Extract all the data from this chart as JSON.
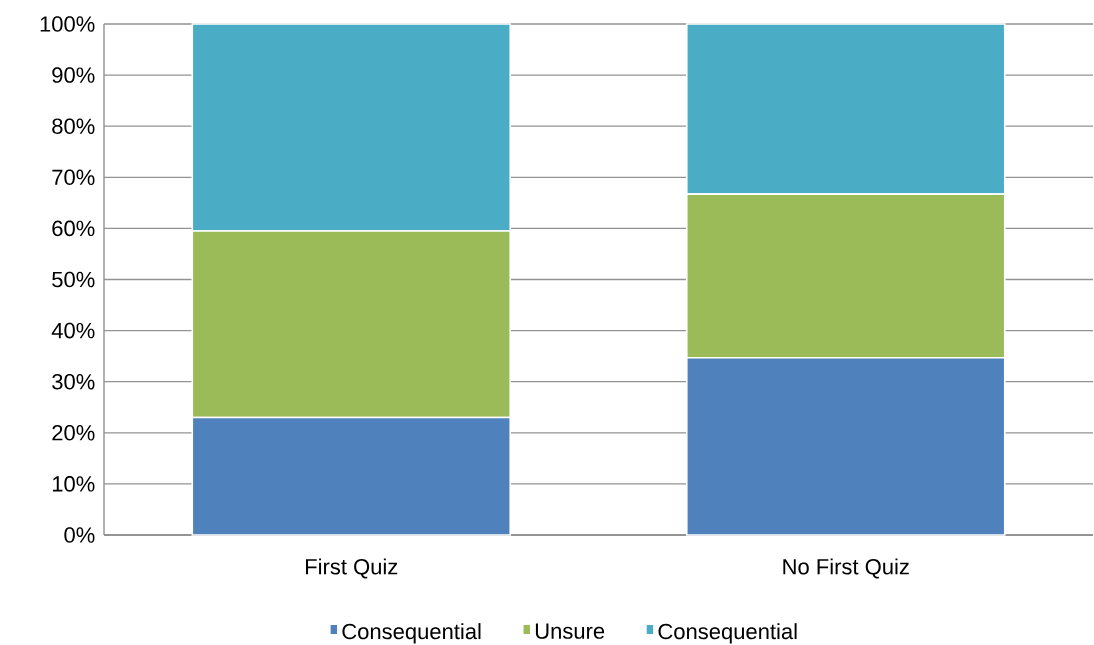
{
  "chart_data": {
    "type": "bar",
    "stacked": true,
    "categories": [
      "First Quiz",
      "No First Quiz"
    ],
    "series": [
      {
        "name": "Consequential",
        "color": "#4f81bd",
        "values": [
          23,
          34.7
        ]
      },
      {
        "name": "Unsure",
        "color": "#9bbb59",
        "values": [
          36.5,
          32.0
        ]
      },
      {
        "name": "Consequential",
        "color": "#4bacc6",
        "values": [
          40.5,
          33.3
        ]
      }
    ],
    "ylim": [
      0,
      100
    ],
    "yticks": [
      {
        "value": 0,
        "label": "0%"
      },
      {
        "value": 10,
        "label": "10%"
      },
      {
        "value": 20,
        "label": "20%"
      },
      {
        "value": 30,
        "label": "30%"
      },
      {
        "value": 40,
        "label": "40%"
      },
      {
        "value": 50,
        "label": "50%"
      },
      {
        "value": 60,
        "label": "60%"
      },
      {
        "value": 70,
        "label": "70%"
      },
      {
        "value": 80,
        "label": "80%"
      },
      {
        "value": 90,
        "label": "90%"
      },
      {
        "value": 100,
        "label": "100%"
      }
    ],
    "grid": "y",
    "legend": "bottom"
  }
}
